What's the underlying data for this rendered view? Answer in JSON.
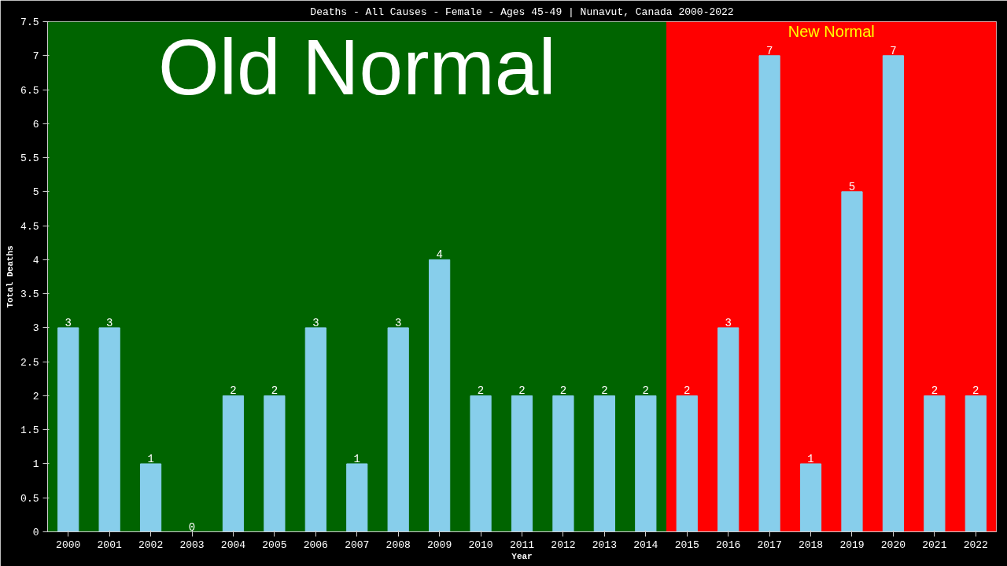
{
  "chart_data": {
    "type": "bar",
    "title": "Deaths - All Causes - Female - Ages 45-49 | Nunavut, Canada 2000-2022",
    "xlabel": "Year",
    "ylabel": "Total Deaths",
    "categories": [
      "2000",
      "2001",
      "2002",
      "2003",
      "2004",
      "2005",
      "2006",
      "2007",
      "2008",
      "2009",
      "2010",
      "2011",
      "2012",
      "2013",
      "2014",
      "2015",
      "2016",
      "2017",
      "2018",
      "2019",
      "2020",
      "2021",
      "2022"
    ],
    "values": [
      3,
      3,
      1,
      0,
      2,
      2,
      3,
      1,
      3,
      4,
      2,
      2,
      2,
      2,
      2,
      2,
      3,
      7,
      1,
      5,
      7,
      2,
      2
    ],
    "color": "#87ceeb",
    "data_labels": true,
    "ylim": [
      0,
      7.5
    ],
    "yticks": [
      0,
      0.5,
      1,
      1.5,
      2,
      2.5,
      3,
      3.5,
      4,
      4.5,
      5,
      5.5,
      6,
      6.5,
      7,
      7.5
    ],
    "bands": [
      {
        "axis": "x",
        "from": "2000",
        "to": "2014",
        "label": "Old Normal",
        "color": "#006400"
      },
      {
        "axis": "x",
        "from": "2015",
        "to": "2022",
        "label": "New Normal",
        "color": "#ff0000"
      }
    ],
    "line_style": "solid"
  }
}
